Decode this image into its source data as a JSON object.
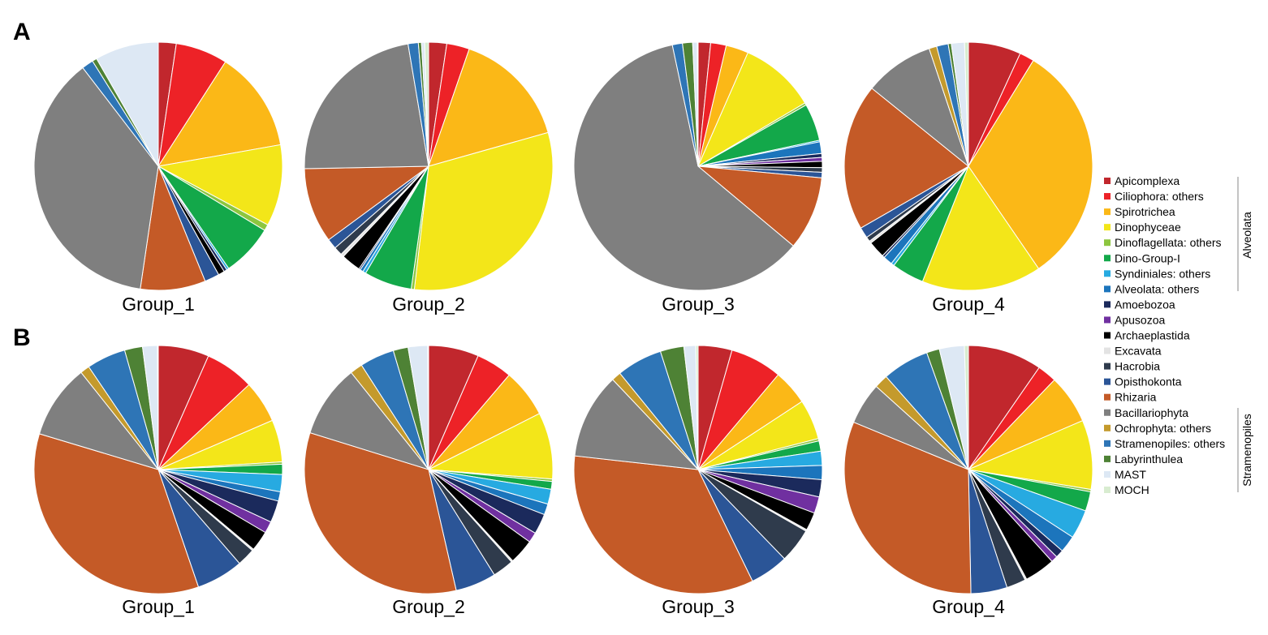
{
  "panels": [
    {
      "letter": "A"
    },
    {
      "letter": "B"
    }
  ],
  "categories": [
    {
      "name": "Apicomplexa",
      "color": "#c1272d"
    },
    {
      "name": "Ciliophora: others",
      "color": "#ed2227"
    },
    {
      "name": "Spirotrichea",
      "color": "#fbb817"
    },
    {
      "name": "Dinophyceae",
      "color": "#f3e619"
    },
    {
      "name": "Dinoflagellata: others",
      "color": "#8dc63f"
    },
    {
      "name": "Dino-Group-I",
      "color": "#13a84a"
    },
    {
      "name": "Syndiniales: others",
      "color": "#27aae1"
    },
    {
      "name": "Alveolata: others",
      "color": "#1c75bc"
    },
    {
      "name": "Amoebozoa",
      "color": "#1b2a5c"
    },
    {
      "name": "Apusozoa",
      "color": "#7030a0"
    },
    {
      "name": "Archaeplastida",
      "color": "#000000"
    },
    {
      "name": "Excavata",
      "color": "#e3e3e3"
    },
    {
      "name": "Hacrobia",
      "color": "#2f3b4c"
    },
    {
      "name": "Opisthokonta",
      "color": "#2b5597"
    },
    {
      "name": "Rhizaria",
      "color": "#c45a27"
    },
    {
      "name": "Bacillariophyta",
      "color": "#7f7f7f"
    },
    {
      "name": "Ochrophyta: others",
      "color": "#c49a2c"
    },
    {
      "name": "Stramenopiles: others",
      "color": "#2e75b6"
    },
    {
      "name": "Labyrinthulea",
      "color": "#4e8235"
    },
    {
      "name": "MAST",
      "color": "#dde8f4"
    },
    {
      "name": "MOCH",
      "color": "#d8ecd0"
    }
  ],
  "brackets": [
    {
      "label": "Alveolata"
    },
    {
      "label": "Stramenopiles"
    }
  ],
  "chart_data": [
    {
      "type": "pie",
      "panel": "A",
      "title": "Group_1",
      "labels": [
        "Apicomplexa",
        "Ciliophora: others",
        "Spirotrichea",
        "Dinophyceae",
        "Dinoflagellata: others",
        "Dino-Group-I",
        "Syndiniales: others",
        "Alveolata: others",
        "Amoebozoa",
        "Apusozoa",
        "Archaeplastida",
        "Excavata",
        "Hacrobia",
        "Opisthokonta",
        "Rhizaria",
        "Bacillariophyta",
        "Ochrophyta: others",
        "Stramenopiles: others",
        "Labyrinthulea",
        "MAST",
        "MOCH"
      ],
      "values": [
        2.3,
        6.7,
        13.0,
        10.5,
        0.8,
        6.7,
        0.3,
        0.0,
        0.4,
        0.0,
        0.8,
        0.0,
        0.0,
        1.9,
        8.4,
        36.9,
        0.0,
        1.5,
        0.6,
        8.2,
        0.0
      ]
    },
    {
      "type": "pie",
      "panel": "A",
      "title": "Group_2",
      "labels": [
        "Apicomplexa",
        "Ciliophora: others",
        "Spirotrichea",
        "Dinophyceae",
        "Dinoflagellata: others",
        "Dino-Group-I",
        "Syndiniales: others",
        "Alveolata: others",
        "Amoebozoa",
        "Apusozoa",
        "Archaeplastida",
        "Excavata",
        "Hacrobia",
        "Opisthokonta",
        "Rhizaria",
        "Bacillariophyta",
        "Ochrophyta: others",
        "Stramenopiles: others",
        "Labyrinthulea",
        "MAST",
        "MOCH"
      ],
      "values": [
        2.3,
        2.9,
        15.0,
        30.6,
        0.4,
        6.1,
        0.4,
        0.4,
        0.2,
        0.0,
        2.5,
        0.4,
        1.1,
        1.3,
        9.6,
        22.2,
        0.0,
        1.3,
        0.4,
        0.4,
        0.5
      ]
    },
    {
      "type": "pie",
      "panel": "A",
      "title": "Group_3",
      "labels": [
        "Apicomplexa",
        "Ciliophora: others",
        "Spirotrichea",
        "Dinophyceae",
        "Dinoflagellata: others",
        "Dino-Group-I",
        "Syndiniales: others",
        "Alveolata: others",
        "Amoebozoa",
        "Apusozoa",
        "Archaeplastida",
        "Excavata",
        "Hacrobia",
        "Opisthokonta",
        "Rhizaria",
        "Bacillariophyta",
        "Ochrophyta: others",
        "Stramenopiles: others",
        "Labyrinthulea",
        "MAST",
        "MOCH"
      ],
      "values": [
        1.6,
        2.0,
        2.9,
        9.8,
        0.3,
        4.8,
        0.2,
        1.5,
        0.5,
        0.5,
        0.8,
        0.0,
        0.6,
        0.7,
        9.5,
        59.9,
        0.0,
        1.3,
        1.3,
        0.6,
        0.1
      ]
    },
    {
      "type": "pie",
      "panel": "A",
      "title": "Group_4",
      "labels": [
        "Apicomplexa",
        "Ciliophora: others",
        "Spirotrichea",
        "Dinophyceae",
        "Dinoflagellata: others",
        "Dino-Group-I",
        "Syndiniales: others",
        "Alveolata: others",
        "Amoebozoa",
        "Apusozoa",
        "Archaeplastida",
        "Excavata",
        "Hacrobia",
        "Opisthokonta",
        "Rhizaria",
        "Bacillariophyta",
        "Ochrophyta: others",
        "Stramenopiles: others",
        "Labyrinthulea",
        "MAST",
        "MOCH"
      ],
      "values": [
        6.8,
        1.9,
        31.5,
        15.5,
        0.0,
        4.2,
        0.4,
        1.2,
        0.3,
        0.0,
        2.2,
        0.3,
        0.6,
        1.4,
        19.0,
        9.0,
        1.0,
        1.5,
        0.4,
        1.7,
        0.5
      ]
    },
    {
      "type": "pie",
      "panel": "B",
      "title": "Group_1",
      "labels": [
        "Apicomplexa",
        "Ciliophora: others",
        "Spirotrichea",
        "Dinophyceae",
        "Dinoflagellata: others",
        "Dino-Group-I",
        "Syndiniales: others",
        "Alveolata: others",
        "Amoebozoa",
        "Apusozoa",
        "Archaeplastida",
        "Excavata",
        "Hacrobia",
        "Opisthokonta",
        "Rhizaria",
        "Bacillariophyta",
        "Ochrophyta: others",
        "Stramenopiles: others",
        "Labyrinthulea",
        "MAST",
        "MOCH"
      ],
      "values": [
        6.5,
        6.3,
        5.4,
        5.4,
        0.3,
        1.3,
        2.2,
        1.2,
        2.8,
        1.5,
        2.6,
        0.2,
        2.3,
        6.0,
        34.3,
        9.5,
        1.2,
        5.0,
        2.3,
        1.9,
        0.1
      ]
    },
    {
      "type": "pie",
      "panel": "B",
      "title": "Group_2",
      "labels": [
        "Apicomplexa",
        "Ciliophora: others",
        "Spirotrichea",
        "Dinophyceae",
        "Dinoflagellata: others",
        "Dino-Group-I",
        "Syndiniales: others",
        "Alveolata: others",
        "Amoebozoa",
        "Apusozoa",
        "Archaeplastida",
        "Excavata",
        "Hacrobia",
        "Opisthokonta",
        "Rhizaria",
        "Bacillariophyta",
        "Ochrophyta: others",
        "Stramenopiles: others",
        "Labyrinthulea",
        "MAST",
        "MOCH"
      ],
      "values": [
        6.4,
        4.6,
        6.2,
        8.5,
        0.3,
        1.0,
        1.9,
        1.4,
        2.6,
        1.3,
        3.2,
        0.2,
        2.7,
        5.2,
        32.7,
        9.3,
        1.6,
        4.4,
        1.9,
        2.5,
        0.1
      ]
    },
    {
      "type": "pie",
      "panel": "B",
      "title": "Group_3",
      "labels": [
        "Apicomplexa",
        "Ciliophora: others",
        "Spirotrichea",
        "Dinophyceae",
        "Dinoflagellata: others",
        "Dino-Group-I",
        "Syndiniales: others",
        "Alveolata: others",
        "Amoebozoa",
        "Apusozoa",
        "Archaeplastida",
        "Excavata",
        "Hacrobia",
        "Opisthokonta",
        "Rhizaria",
        "Bacillariophyta",
        "Ochrophyta: others",
        "Stramenopiles: others",
        "Labyrinthulea",
        "MAST",
        "MOCH"
      ],
      "values": [
        4.3,
        6.6,
        4.5,
        5.1,
        0.3,
        1.3,
        1.8,
        1.8,
        2.2,
        2.1,
        2.3,
        0.2,
        4.4,
        4.9,
        33.2,
        10.9,
        1.2,
        5.8,
        3.0,
        1.5,
        0.3
      ]
    },
    {
      "type": "pie",
      "panel": "B",
      "title": "Group_4",
      "labels": [
        "Apicomplexa",
        "Ciliophora: others",
        "Spirotrichea",
        "Dinophyceae",
        "Dinoflagellata: others",
        "Dino-Group-I",
        "Syndiniales: others",
        "Alveolata: others",
        "Amoebozoa",
        "Apusozoa",
        "Archaeplastida",
        "Excavata",
        "Hacrobia",
        "Opisthokonta",
        "Rhizaria",
        "Bacillariophyta",
        "Ochrophyta: others",
        "Stramenopiles: others",
        "Labyrinthulea",
        "MAST",
        "MOCH"
      ],
      "values": [
        9.2,
        2.4,
        6.1,
        8.6,
        0.3,
        2.4,
        3.6,
        2.1,
        1.0,
        0.8,
        3.8,
        0.2,
        2.4,
        4.5,
        30.1,
        5.2,
        1.7,
        5.8,
        1.6,
        3.1,
        0.5
      ]
    }
  ]
}
